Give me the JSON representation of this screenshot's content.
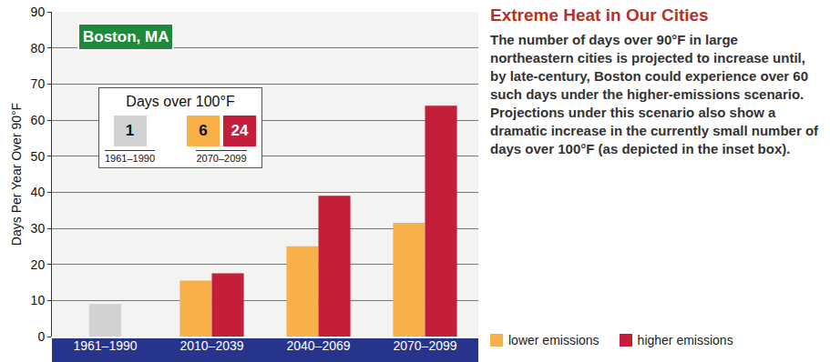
{
  "chart_data": {
    "type": "bar",
    "title": "Extreme Heat in Our Cities",
    "subtitle": "The number of days over 90°F in large northeastern cities is projected to increase until, by late-century, Boston could experience over 60 such days under the higher-emissions scenario. Projections under this scenario also show a dramatic increase in the currently small number of days over 100°F (as depicted in the inset box).",
    "ylabel": "Days Per Year Over 90°F",
    "categories": [
      "1961–1990",
      "2010–2039",
      "2040–2069",
      "2070–2099"
    ],
    "series": [
      {
        "color": "#d2d2d2",
        "values": [
          9,
          null,
          null,
          null
        ]
      },
      {
        "name": "lower emissions",
        "color": "#f9b049",
        "values": [
          null,
          15.5,
          25,
          31.5
        ]
      },
      {
        "name": "higher emissions",
        "color": "#c41e3a",
        "values": [
          null,
          17.5,
          39,
          64
        ]
      }
    ],
    "ylim": [
      0,
      90
    ],
    "yticks": [
      0,
      10,
      20,
      30,
      40,
      50,
      60,
      70,
      80,
      90
    ],
    "grid": true,
    "legend": "bottom right",
    "annotations": [
      {
        "text": "Boston, MA",
        "color": "#1e8a3c"
      }
    ],
    "inset": {
      "title": "Days over 100°F",
      "items": [
        {
          "period": "1961–1990",
          "values": [
            1
          ]
        },
        {
          "period": "2070–2099",
          "values": [
            6,
            24
          ]
        }
      ]
    }
  }
}
